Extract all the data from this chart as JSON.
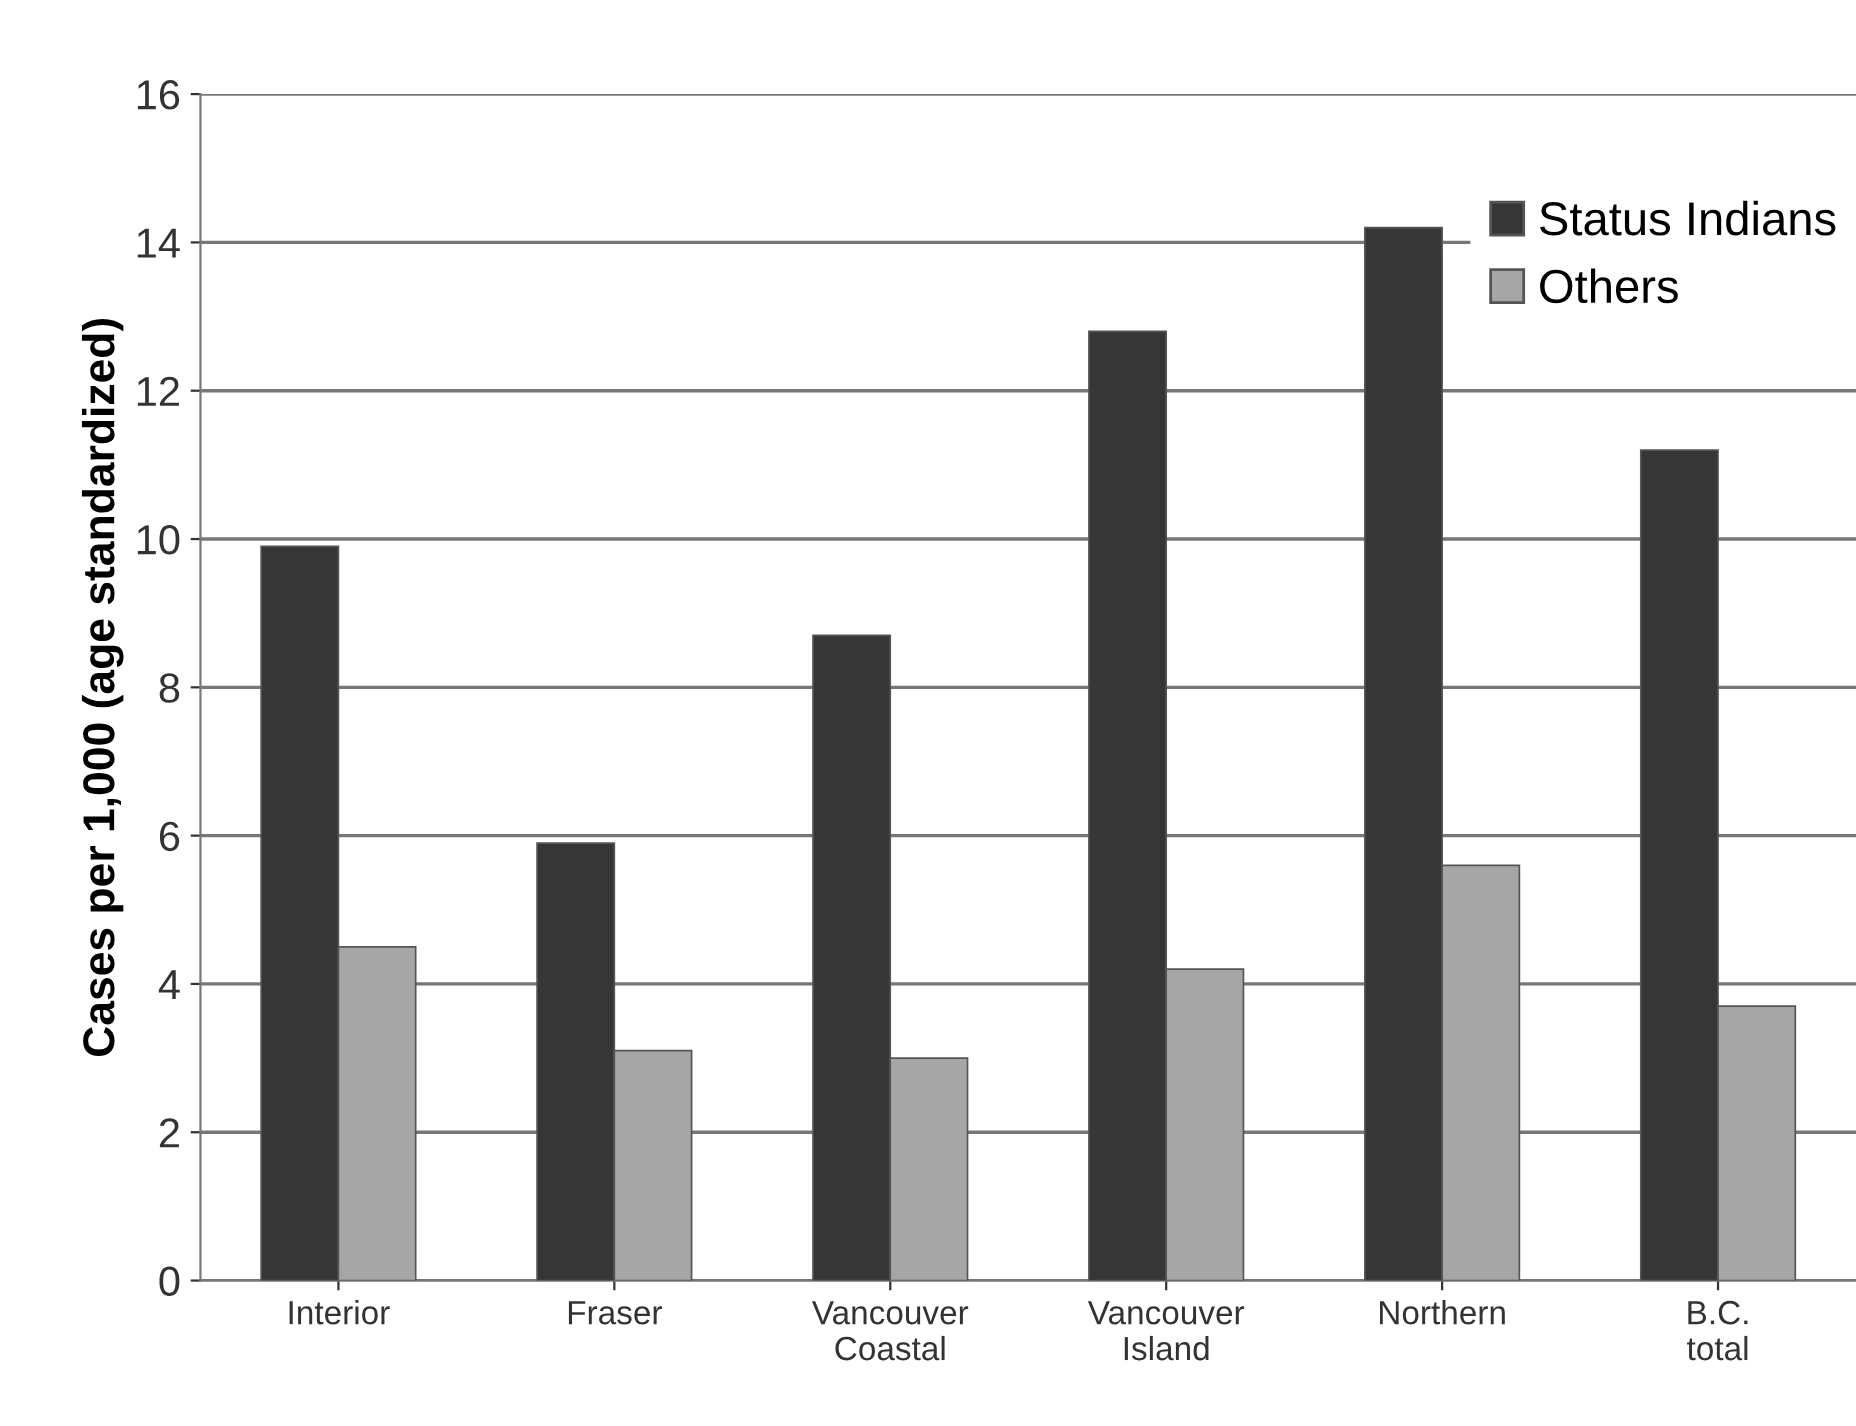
{
  "chart_data": {
    "type": "bar",
    "ylabel": "Cases per 1,000 (age standardized)",
    "categories": [
      "Interior",
      "Fraser",
      "Vancouver\nCoastal",
      "Vancouver\nIsland",
      "Northern",
      "B.C.\ntotal"
    ],
    "series": [
      {
        "name": "Status Indians",
        "color": "#363636",
        "values": [
          9.9,
          5.9,
          8.7,
          12.8,
          14.2,
          11.2
        ]
      },
      {
        "name": "Others",
        "color": "#a6a6a6",
        "values": [
          4.5,
          3.1,
          3.0,
          4.2,
          5.6,
          3.7
        ]
      }
    ],
    "ylim": [
      0,
      16
    ],
    "yticks": [
      0,
      2,
      4,
      6,
      8,
      10,
      12,
      14,
      16
    ],
    "grid": "y",
    "legend": "top right"
  }
}
